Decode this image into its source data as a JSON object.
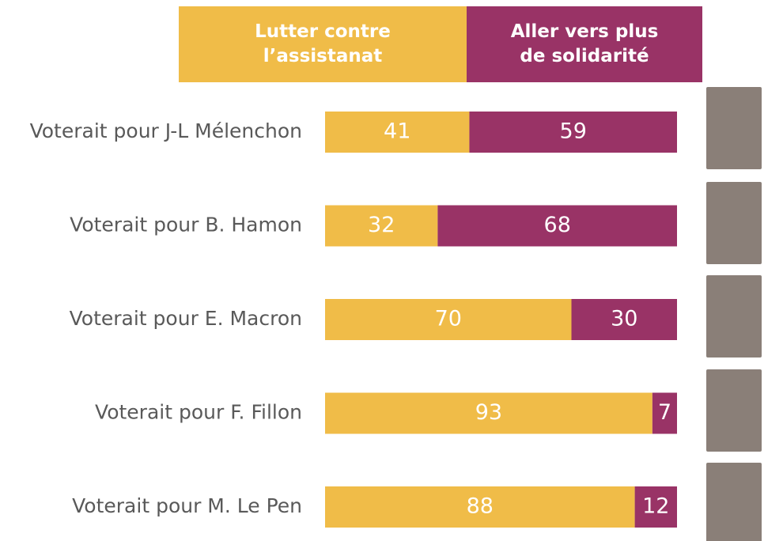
{
  "chart_data": {
    "type": "stacked-bar",
    "categories": [
      "Voterait pour J-L Mélenchon",
      "Voterait pour B. Hamon",
      "Voterait pour E. Macron",
      "Voterait pour F. Fillon",
      "Voterait pour M. Le Pen"
    ],
    "series": [
      {
        "name": "Lutter contre l’assistanat",
        "color": "#f0bc48",
        "values": [
          41,
          32,
          70,
          93,
          88
        ]
      },
      {
        "name": "Aller vers plus de solidarité",
        "color": "#993366",
        "values": [
          59,
          68,
          30,
          7,
          12
        ]
      }
    ],
    "xlim": [
      0,
      100
    ]
  }
}
